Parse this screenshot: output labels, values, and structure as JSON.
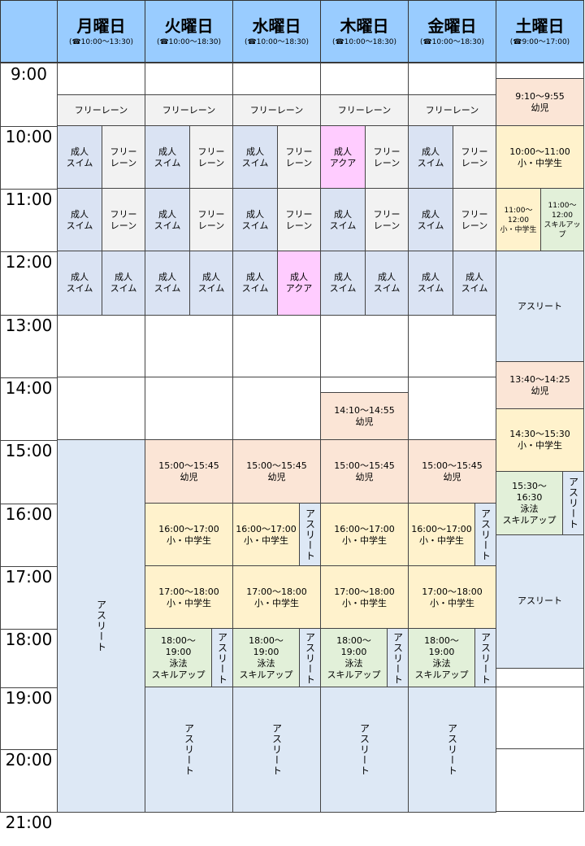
{
  "colors": {
    "header": "#99ccff",
    "swim": "#dae3f3",
    "free": "#f2f2f2",
    "aqua": "#ffccff",
    "infant": "#fbe5d6",
    "junior": "#fff2cc",
    "skill": "#e2f0d9",
    "athlete": "#dde8f5",
    "empty": "#ffffff"
  },
  "days": [
    {
      "name": "月曜日",
      "hours": "(☎10:00〜13:30)"
    },
    {
      "name": "火曜日",
      "hours": "(☎10:00〜18:30)"
    },
    {
      "name": "水曜日",
      "hours": "(☎10:00〜18:30)"
    },
    {
      "name": "木曜日",
      "hours": "(☎10:00〜18:30)"
    },
    {
      "name": "金曜日",
      "hours": "(☎10:00〜18:30)"
    },
    {
      "name": "土曜日",
      "hours": "(☎9:00〜17:00)"
    }
  ],
  "hours": [
    "9:00",
    "10:00",
    "11:00",
    "12:00",
    "13:00",
    "14:00",
    "15:00",
    "16:00",
    "17:00",
    "18:00",
    "19:00",
    "20:00",
    "21:00"
  ],
  "blocks": [
    {
      "day": 0,
      "start": "9:30",
      "end": "10:00",
      "lane": "full",
      "cat": "free",
      "label": "フリーレーン"
    },
    {
      "day": 0,
      "start": "10:00",
      "end": "11:00",
      "lane": "left",
      "cat": "swim",
      "label": "成人\nスイム"
    },
    {
      "day": 0,
      "start": "10:00",
      "end": "11:00",
      "lane": "right",
      "cat": "free",
      "label": "フリー\nレーン"
    },
    {
      "day": 0,
      "start": "11:00",
      "end": "12:00",
      "lane": "left",
      "cat": "swim",
      "label": "成人\nスイム"
    },
    {
      "day": 0,
      "start": "11:00",
      "end": "12:00",
      "lane": "right",
      "cat": "free",
      "label": "フリー\nレーン"
    },
    {
      "day": 0,
      "start": "12:00",
      "end": "13:00",
      "lane": "left",
      "cat": "swim",
      "label": "成人\nスイム"
    },
    {
      "day": 0,
      "start": "12:00",
      "end": "13:00",
      "lane": "right",
      "cat": "swim",
      "label": "成人\nスイム"
    },
    {
      "day": 0,
      "start": "15:00",
      "end": "21:00",
      "lane": "full",
      "cat": "athlete",
      "label": "アスリート",
      "vertical": true
    },
    {
      "day": 1,
      "start": "9:30",
      "end": "10:00",
      "lane": "full",
      "cat": "free",
      "label": "フリーレーン"
    },
    {
      "day": 1,
      "start": "10:00",
      "end": "11:00",
      "lane": "left",
      "cat": "swim",
      "label": "成人\nスイム"
    },
    {
      "day": 1,
      "start": "10:00",
      "end": "11:00",
      "lane": "right",
      "cat": "free",
      "label": "フリー\nレーン"
    },
    {
      "day": 1,
      "start": "11:00",
      "end": "12:00",
      "lane": "left",
      "cat": "swim",
      "label": "成人\nスイム"
    },
    {
      "day": 1,
      "start": "11:00",
      "end": "12:00",
      "lane": "right",
      "cat": "free",
      "label": "フリー\nレーン"
    },
    {
      "day": 1,
      "start": "12:00",
      "end": "13:00",
      "lane": "left",
      "cat": "swim",
      "label": "成人\nスイム"
    },
    {
      "day": 1,
      "start": "12:00",
      "end": "13:00",
      "lane": "right",
      "cat": "swim",
      "label": "成人\nスイム"
    },
    {
      "day": 1,
      "start": "15:00",
      "end": "16:00",
      "lane": "full",
      "cat": "infant",
      "label": "15:00〜15:45\n幼児"
    },
    {
      "day": 1,
      "start": "16:00",
      "end": "17:00",
      "lane": "full",
      "cat": "junior",
      "label": "16:00〜17:00\n小・中学生"
    },
    {
      "day": 1,
      "start": "17:00",
      "end": "18:00",
      "lane": "full",
      "cat": "junior",
      "label": "17:00〜18:00\n小・中学生"
    },
    {
      "day": 1,
      "start": "18:00",
      "end": "19:00",
      "lane": "main",
      "cat": "skill",
      "label": "18:00〜\n19:00\n泳法\nスキルアップ"
    },
    {
      "day": 1,
      "start": "18:00",
      "end": "19:00",
      "lane": "side",
      "cat": "athlete",
      "label": "アスリート",
      "vertical": true
    },
    {
      "day": 1,
      "start": "19:00",
      "end": "21:00",
      "lane": "full",
      "cat": "athlete",
      "label": "アスリート",
      "vertical": true
    },
    {
      "day": 2,
      "start": "9:30",
      "end": "10:00",
      "lane": "full",
      "cat": "free",
      "label": "フリーレーン"
    },
    {
      "day": 2,
      "start": "10:00",
      "end": "11:00",
      "lane": "left",
      "cat": "swim",
      "label": "成人\nスイム"
    },
    {
      "day": 2,
      "start": "10:00",
      "end": "11:00",
      "lane": "right",
      "cat": "free",
      "label": "フリー\nレーン"
    },
    {
      "day": 2,
      "start": "11:00",
      "end": "12:00",
      "lane": "left",
      "cat": "swim",
      "label": "成人\nスイム"
    },
    {
      "day": 2,
      "start": "11:00",
      "end": "12:00",
      "lane": "right",
      "cat": "free",
      "label": "フリー\nレーン"
    },
    {
      "day": 2,
      "start": "12:00",
      "end": "13:00",
      "lane": "left",
      "cat": "swim",
      "label": "成人\nスイム"
    },
    {
      "day": 2,
      "start": "12:00",
      "end": "13:00",
      "lane": "right",
      "cat": "aqua",
      "label": "成人\nアクア"
    },
    {
      "day": 2,
      "start": "15:00",
      "end": "16:00",
      "lane": "full",
      "cat": "infant",
      "label": "15:00〜15:45\n幼児"
    },
    {
      "day": 2,
      "start": "16:00",
      "end": "17:00",
      "lane": "main",
      "cat": "junior",
      "label": "16:00〜17:00\n小・中学生"
    },
    {
      "day": 2,
      "start": "16:00",
      "end": "17:00",
      "lane": "side",
      "cat": "athlete",
      "label": "アスリート",
      "vertical": true
    },
    {
      "day": 2,
      "start": "17:00",
      "end": "18:00",
      "lane": "full",
      "cat": "junior",
      "label": "17:00〜18:00\n小・中学生"
    },
    {
      "day": 2,
      "start": "18:00",
      "end": "19:00",
      "lane": "main",
      "cat": "skill",
      "label": "18:00〜\n19:00\n泳法\nスキルアップ"
    },
    {
      "day": 2,
      "start": "18:00",
      "end": "19:00",
      "lane": "side",
      "cat": "athlete",
      "label": "アスリート",
      "vertical": true
    },
    {
      "day": 2,
      "start": "19:00",
      "end": "21:00",
      "lane": "full",
      "cat": "athlete",
      "label": "アスリート",
      "vertical": true
    },
    {
      "day": 3,
      "start": "9:30",
      "end": "10:00",
      "lane": "full",
      "cat": "free",
      "label": "フリーレーン"
    },
    {
      "day": 3,
      "start": "10:00",
      "end": "11:00",
      "lane": "left",
      "cat": "aqua",
      "label": "成人\nアクア"
    },
    {
      "day": 3,
      "start": "10:00",
      "end": "11:00",
      "lane": "right",
      "cat": "free",
      "label": "フリー\nレーン"
    },
    {
      "day": 3,
      "start": "11:00",
      "end": "12:00",
      "lane": "left",
      "cat": "swim",
      "label": "成人\nスイム"
    },
    {
      "day": 3,
      "start": "11:00",
      "end": "12:00",
      "lane": "right",
      "cat": "free",
      "label": "フリー\nレーン"
    },
    {
      "day": 3,
      "start": "12:00",
      "end": "13:00",
      "lane": "left",
      "cat": "swim",
      "label": "成人\nスイム"
    },
    {
      "day": 3,
      "start": "12:00",
      "end": "13:00",
      "lane": "right",
      "cat": "swim",
      "label": "成人\nスイム"
    },
    {
      "day": 3,
      "start": "14:15",
      "end": "15:00",
      "lane": "full",
      "cat": "infant",
      "label": "14:10〜14:55\n幼児"
    },
    {
      "day": 3,
      "start": "15:00",
      "end": "16:00",
      "lane": "full",
      "cat": "infant",
      "label": "15:00〜15:45\n幼児"
    },
    {
      "day": 3,
      "start": "16:00",
      "end": "17:00",
      "lane": "full",
      "cat": "junior",
      "label": "16:00〜17:00\n小・中学生"
    },
    {
      "day": 3,
      "start": "17:00",
      "end": "18:00",
      "lane": "full",
      "cat": "junior",
      "label": "17:00〜18:00\n小・中学生"
    },
    {
      "day": 3,
      "start": "18:00",
      "end": "19:00",
      "lane": "main",
      "cat": "skill",
      "label": "18:00〜\n19:00\n泳法\nスキルアップ"
    },
    {
      "day": 3,
      "start": "18:00",
      "end": "19:00",
      "lane": "side",
      "cat": "athlete",
      "label": "アスリート",
      "vertical": true
    },
    {
      "day": 3,
      "start": "19:00",
      "end": "21:00",
      "lane": "full",
      "cat": "athlete",
      "label": "アスリート",
      "vertical": true
    },
    {
      "day": 4,
      "start": "9:30",
      "end": "10:00",
      "lane": "full",
      "cat": "free",
      "label": "フリーレーン"
    },
    {
      "day": 4,
      "start": "10:00",
      "end": "11:00",
      "lane": "left",
      "cat": "swim",
      "label": "成人\nスイム"
    },
    {
      "day": 4,
      "start": "10:00",
      "end": "11:00",
      "lane": "right",
      "cat": "free",
      "label": "フリー\nレーン"
    },
    {
      "day": 4,
      "start": "11:00",
      "end": "12:00",
      "lane": "left",
      "cat": "swim",
      "label": "成人\nスイム"
    },
    {
      "day": 4,
      "start": "11:00",
      "end": "12:00",
      "lane": "right",
      "cat": "free",
      "label": "フリー\nレーン"
    },
    {
      "day": 4,
      "start": "12:00",
      "end": "13:00",
      "lane": "left",
      "cat": "swim",
      "label": "成人\nスイム"
    },
    {
      "day": 4,
      "start": "12:00",
      "end": "13:00",
      "lane": "right",
      "cat": "swim",
      "label": "成人\nスイム"
    },
    {
      "day": 4,
      "start": "15:00",
      "end": "16:00",
      "lane": "full",
      "cat": "infant",
      "label": "15:00〜15:45\n幼児"
    },
    {
      "day": 4,
      "start": "16:00",
      "end": "17:00",
      "lane": "main",
      "cat": "junior",
      "label": "16:00〜17:00\n小・中学生"
    },
    {
      "day": 4,
      "start": "16:00",
      "end": "17:00",
      "lane": "side",
      "cat": "athlete",
      "label": "アスリート",
      "vertical": true
    },
    {
      "day": 4,
      "start": "17:00",
      "end": "18:00",
      "lane": "full",
      "cat": "junior",
      "label": "17:00〜18:00\n小・中学生"
    },
    {
      "day": 4,
      "start": "18:00",
      "end": "19:00",
      "lane": "main",
      "cat": "skill",
      "label": "18:00〜\n19:00\n泳法\nスキルアップ"
    },
    {
      "day": 4,
      "start": "18:00",
      "end": "19:00",
      "lane": "side",
      "cat": "athlete",
      "label": "アスリート",
      "vertical": true
    },
    {
      "day": 4,
      "start": "19:00",
      "end": "21:00",
      "lane": "full",
      "cat": "athlete",
      "label": "アスリート",
      "vertical": true
    },
    {
      "day": 5,
      "start": "9:15",
      "end": "10:00",
      "lane": "full",
      "cat": "infant",
      "label": "9:10〜9:55\n幼児"
    },
    {
      "day": 5,
      "start": "10:00",
      "end": "11:00",
      "lane": "full",
      "cat": "junior",
      "label": "10:00〜11:00\n小・中学生"
    },
    {
      "day": 5,
      "start": "11:00",
      "end": "12:00",
      "lane": "left",
      "cat": "junior",
      "label": "11:00〜\n12:00\n小・中学生",
      "small": true
    },
    {
      "day": 5,
      "start": "11:00",
      "end": "12:00",
      "lane": "right",
      "cat": "skill",
      "label": "11:00〜\n12:00\nスキルアップ",
      "small": true
    },
    {
      "day": 5,
      "start": "12:00",
      "end": "13:45",
      "lane": "full",
      "cat": "athlete",
      "label": "アスリート"
    },
    {
      "day": 5,
      "start": "13:45",
      "end": "14:30",
      "lane": "full",
      "cat": "infant",
      "label": "13:40〜14:25\n幼児"
    },
    {
      "day": 5,
      "start": "14:30",
      "end": "15:30",
      "lane": "full",
      "cat": "junior",
      "label": "14:30〜15:30\n小・中学生"
    },
    {
      "day": 5,
      "start": "15:30",
      "end": "16:30",
      "lane": "main",
      "cat": "skill",
      "label": "15:30〜\n16:30\n泳法\nスキルアップ"
    },
    {
      "day": 5,
      "start": "15:30",
      "end": "16:30",
      "lane": "side",
      "cat": "athlete",
      "label": "アスリート",
      "vertical": true
    },
    {
      "day": 5,
      "start": "16:30",
      "end": "18:40",
      "lane": "full",
      "cat": "athlete",
      "label": "アスリート"
    }
  ]
}
